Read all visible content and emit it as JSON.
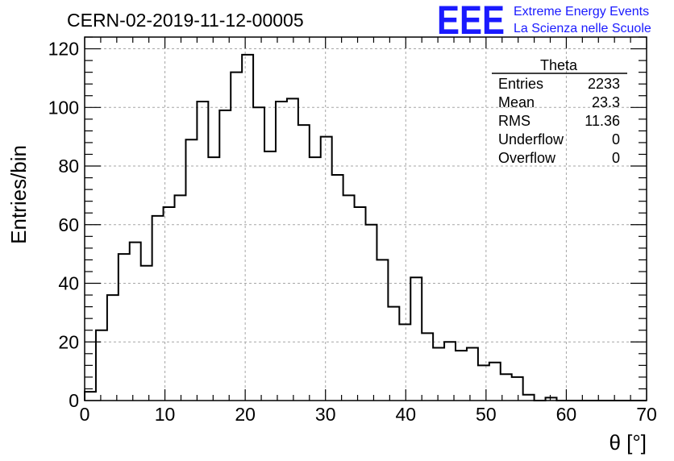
{
  "header": {
    "run_title": "CERN-02-2019-11-12-00005",
    "logo_text": "EEE",
    "logo_line1": "Extreme Energy Events",
    "logo_line2": "La Scienza nelle Scuole"
  },
  "stats": {
    "name": "Theta",
    "rows": [
      {
        "label": "Entries",
        "value": "2233"
      },
      {
        "label": "Mean",
        "value": "23.3"
      },
      {
        "label": "RMS",
        "value": "11.36"
      },
      {
        "label": "Underflow",
        "value": "0"
      },
      {
        "label": "Overflow",
        "value": "0"
      }
    ]
  },
  "chart_data": {
    "type": "histogram",
    "title": "CERN-02-2019-11-12-00005",
    "xlabel": "θ [°]",
    "ylabel": "Entries/bin",
    "xlim": [
      0,
      70
    ],
    "ylim": [
      0,
      124
    ],
    "grid": true,
    "bin_width": 1.4,
    "x_ticks": [
      0,
      10,
      20,
      30,
      40,
      50,
      60,
      70
    ],
    "y_ticks": [
      0,
      20,
      40,
      60,
      80,
      100,
      120
    ],
    "x_tick_labels": [
      "0",
      "10",
      "20",
      "30",
      "40",
      "50",
      "60",
      "70"
    ],
    "y_tick_labels": [
      "0",
      "20",
      "40",
      "60",
      "80",
      "100",
      "120"
    ],
    "values": [
      3,
      24,
      36,
      50,
      54,
      46,
      63,
      66,
      70,
      89,
      102,
      83,
      99,
      112,
      118,
      100,
      85,
      102,
      103,
      94,
      83,
      90,
      77,
      70,
      66,
      60,
      48,
      32,
      26,
      42,
      23,
      18,
      20,
      17,
      18,
      12,
      13,
      9,
      8,
      2,
      0,
      1,
      0,
      0,
      0,
      0,
      0,
      0,
      0,
      0
    ]
  }
}
